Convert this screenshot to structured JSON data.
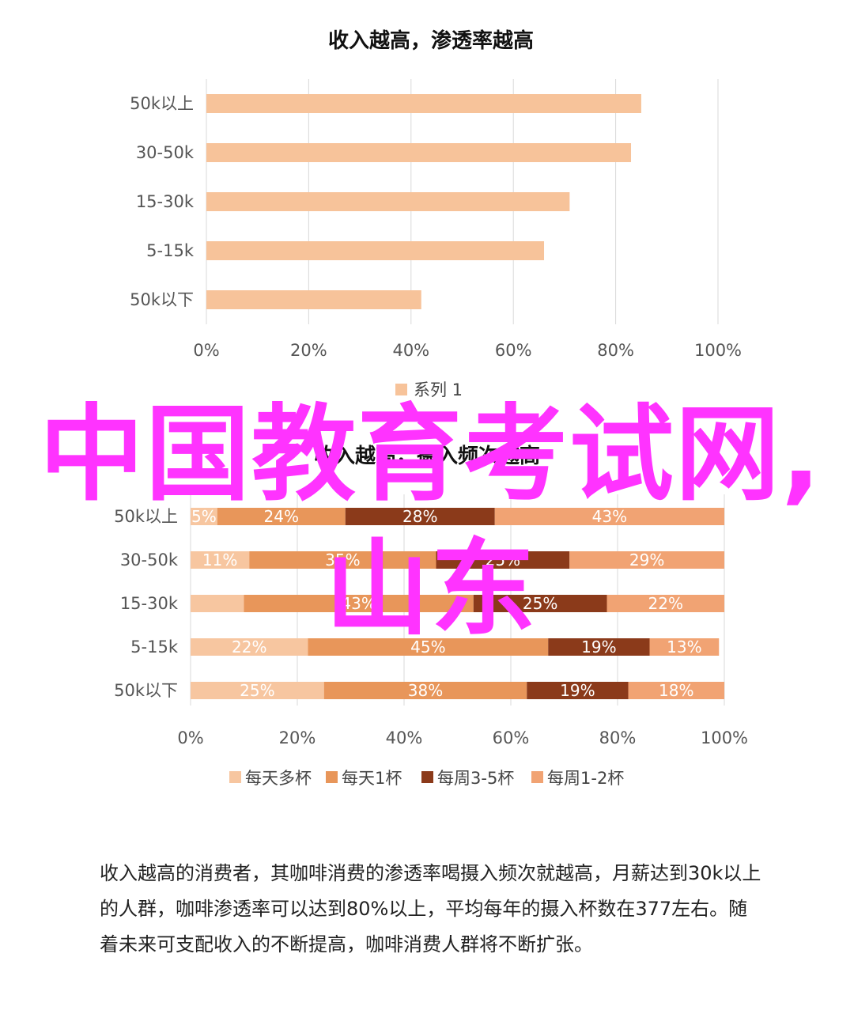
{
  "chart_data": [
    {
      "type": "bar",
      "orientation": "horizontal",
      "title": "收入越高，渗透率越高",
      "categories": [
        "50k以上",
        "30-50k",
        "15-30k",
        "5-15k",
        "50k以下"
      ],
      "series": [
        {
          "name": "系列 1",
          "values": [
            85,
            83,
            71,
            66,
            42
          ]
        }
      ],
      "x_ticks": [
        "0%",
        "20%",
        "40%",
        "60%",
        "80%",
        "100%"
      ],
      "xlim": [
        0,
        100
      ],
      "grid": true,
      "legend": "bottom",
      "colors": [
        "#f7c39a"
      ]
    },
    {
      "type": "bar",
      "orientation": "horizontal",
      "stacked": true,
      "percent": true,
      "title": "收入越高，摄入频次越高",
      "categories": [
        "50k以上",
        "30-50k",
        "15-30k",
        "5-15k",
        "50k以下"
      ],
      "series": [
        {
          "name": "每天多杯",
          "values": [
            5,
            11,
            10,
            22,
            25
          ],
          "labels": [
            "5%",
            "11%",
            "",
            "22%",
            "25%"
          ]
        },
        {
          "name": "每天1杯",
          "values": [
            24,
            35,
            43,
            45,
            38
          ],
          "labels": [
            "24%",
            "35%",
            "43%",
            "45%",
            "38%"
          ]
        },
        {
          "name": "每周3-5杯",
          "values": [
            28,
            25,
            25,
            19,
            19
          ],
          "labels": [
            "28%",
            "25%",
            "25%",
            "19%",
            "19%"
          ]
        },
        {
          "name": "每周1-2杯",
          "values": [
            43,
            29,
            22,
            13,
            18
          ],
          "labels": [
            "43%",
            "29%",
            "22%",
            "13%",
            "18%"
          ]
        }
      ],
      "x_ticks": [
        "0%",
        "20%",
        "40%",
        "60%",
        "80%",
        "100%"
      ],
      "xlim": [
        0,
        100
      ],
      "grid": true,
      "legend": "bottom",
      "colors": [
        "#f7c6a0",
        "#e8965a",
        "#8b3a1a",
        "#f1a373"
      ]
    }
  ],
  "watermark": "中国教育考试网,山东",
  "paragraph": "收入越高的消费者，其咖啡消费的渗透率喝摄入频次就越高，月薪达到30k以上的人群，咖啡渗透率可以达到80%以上，平均每年的摄入杯数在377左右。随着未来可支配收入的不断提高，咖啡消费人群将不断扩张。"
}
